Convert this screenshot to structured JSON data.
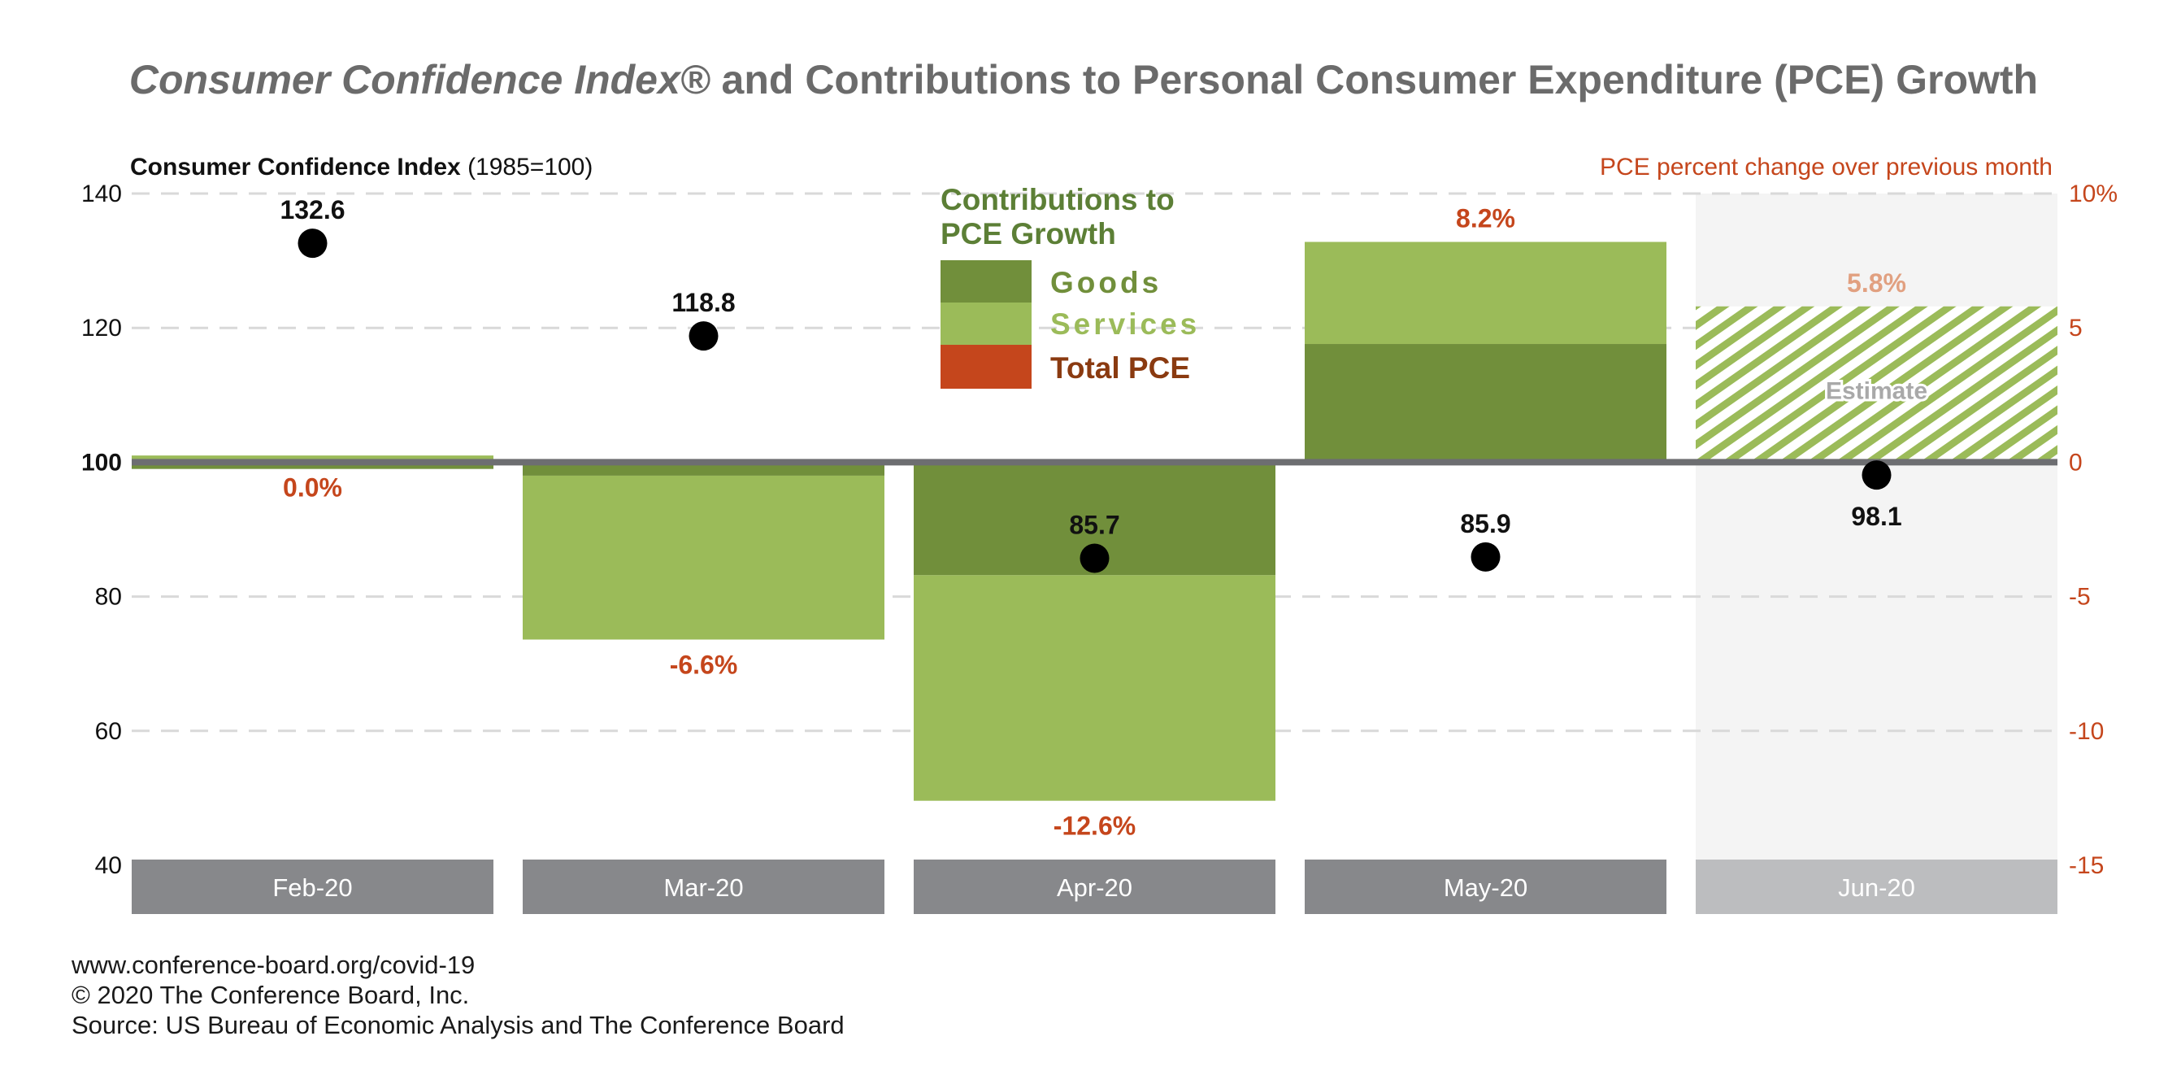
{
  "chart_data": {
    "type": "bar",
    "title_italic": "Consumer Confidence Index®",
    "title_rest": " and Contributions to Personal Consumer Expenditure (PCE) Growth",
    "left_axis": {
      "label_bold": "Consumer Confidence Index",
      "label_rest": " (1985=100)",
      "ticks": [
        "140",
        "120",
        "100",
        "80",
        "60",
        "40"
      ],
      "ylim": [
        40,
        140
      ]
    },
    "right_axis": {
      "label": "PCE percent change over previous month",
      "ticks": [
        "10%",
        "5",
        "0",
        "-5",
        "-10",
        "-15"
      ],
      "ylim": [
        -15,
        10
      ]
    },
    "categories": [
      "Feb-20",
      "Mar-20",
      "Apr-20",
      "May-20",
      "Jun-20"
    ],
    "series": [
      {
        "name": "Goods",
        "values": [
          -0.25,
          -0.5,
          -4.2,
          4.4,
          null
        ]
      },
      {
        "name": "Services",
        "values": [
          0.25,
          -6.1,
          -8.4,
          3.8,
          null
        ]
      },
      {
        "name": "Total PCE",
        "values": [
          0.0,
          -6.6,
          -12.6,
          8.2,
          5.8
        ]
      }
    ],
    "total_labels": [
      "0.0%",
      "-6.6%",
      "-12.6%",
      "8.2%",
      "5.8%"
    ],
    "cci": {
      "values": [
        132.6,
        118.8,
        85.7,
        85.9,
        98.1
      ],
      "labels": [
        "132.6",
        "118.8",
        "85.7",
        "85.9",
        "98.1"
      ]
    },
    "estimate_label": "Estimate",
    "legend_title_line1": "Contributions to",
    "legend_title_line2": "PCE Growth",
    "colors": {
      "goods": "#718f3b",
      "services": "#9bbb59",
      "total": "#c5461c",
      "title": "#6b6b6b",
      "legend_title": "#5c7f36",
      "right_axis": "#c5461c",
      "estimate_label": "#e1a080",
      "category_box": "#87888b",
      "category_box_estimate": "#bcbdbf",
      "estimate_bg": "#f4f4f4",
      "zero_line": "#6d6e71",
      "grid": "#d9d9d9"
    }
  },
  "footer": {
    "line1": "www.conference-board.org/covid-19",
    "line2": "© 2020 The Conference Board, Inc.",
    "line3": "Source: US Bureau of Economic Analysis and The Conference Board"
  }
}
